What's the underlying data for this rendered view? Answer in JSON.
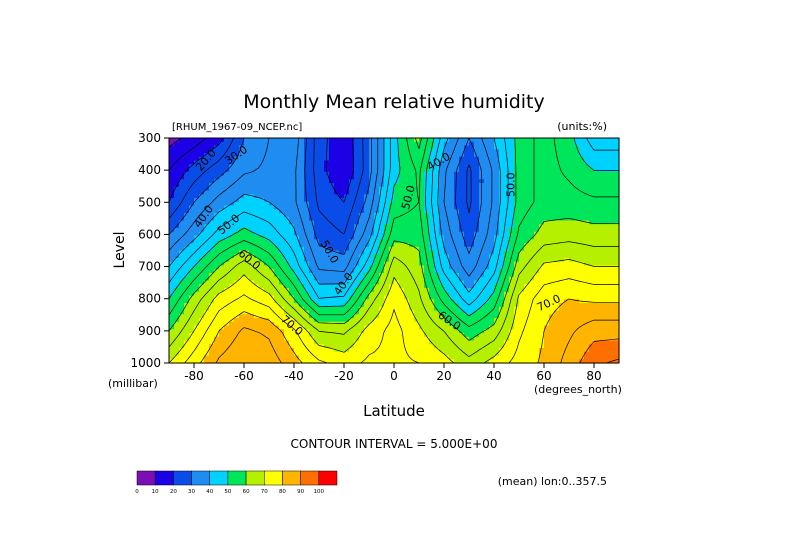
{
  "chart_data": {
    "type": "heatmap",
    "title": "Monthly Mean relative humidity",
    "dataset_label": "[RHUM_1967-09_NCEP.nc]",
    "units_label": "(units:%)",
    "xlabel": "Latitude",
    "x_units": "(degrees_north)",
    "ylabel": "Level",
    "y_units": "(millibar)",
    "xlim": [
      -90,
      90
    ],
    "ylim": [
      1000,
      300
    ],
    "x_ticks": [
      -80,
      -60,
      -40,
      -20,
      0,
      20,
      40,
      60,
      80
    ],
    "x_tick_labels": [
      "-80",
      "-60",
      "-40",
      "-20",
      "0",
      "20",
      "40",
      "60",
      "80"
    ],
    "y_ticks": [
      300,
      400,
      500,
      600,
      700,
      800,
      900,
      1000
    ],
    "y_tick_labels": [
      "300",
      "400",
      "500",
      "600",
      "700",
      "800",
      "900",
      "1000"
    ],
    "lats": [
      -90,
      -80,
      -70,
      -60,
      -50,
      -40,
      -30,
      -20,
      -10,
      0,
      10,
      20,
      30,
      40,
      50,
      60,
      70,
      80,
      90
    ],
    "levels": [
      300,
      400,
      500,
      600,
      700,
      800,
      900,
      1000
    ],
    "values": [
      [
        8,
        12,
        18,
        30,
        35,
        38,
        22,
        16,
        28,
        48,
        62,
        42,
        30,
        40,
        52,
        57,
        52,
        42,
        42
      ],
      [
        15,
        22,
        28,
        34,
        36,
        36,
        22,
        15,
        28,
        48,
        56,
        36,
        24,
        36,
        52,
        57,
        54,
        50,
        50
      ],
      [
        20,
        30,
        37,
        42,
        40,
        36,
        24,
        20,
        32,
        52,
        55,
        35,
        24,
        36,
        52,
        57,
        57,
        56,
        56
      ],
      [
        30,
        38,
        47,
        52,
        48,
        41,
        28,
        25,
        38,
        58,
        58,
        38,
        27,
        38,
        56,
        62,
        63,
        62,
        62
      ],
      [
        40,
        50,
        60,
        68,
        60,
        48,
        34,
        33,
        48,
        68,
        62,
        43,
        32,
        43,
        63,
        71,
        72,
        70,
        70
      ],
      [
        50,
        62,
        72,
        76,
        72,
        60,
        45,
        46,
        62,
        74,
        66,
        53,
        42,
        52,
        71,
        78,
        80,
        79,
        79
      ],
      [
        60,
        70,
        80,
        86,
        84,
        76,
        65,
        64,
        72,
        77,
        71,
        65,
        57,
        62,
        74,
        80,
        84,
        88,
        88
      ],
      [
        70,
        78,
        86,
        90,
        88,
        82,
        76,
        73,
        76,
        76,
        75,
        72,
        67,
        72,
        77,
        81,
        87,
        94,
        96
      ]
    ],
    "contour_labels": [
      {
        "text": "20.0",
        "lat": -75,
        "lev": 370,
        "angle": -50
      },
      {
        "text": "30.0",
        "lat": -63,
        "lev": 355,
        "angle": -35
      },
      {
        "text": "40.0",
        "lat": -76,
        "lev": 545,
        "angle": -55
      },
      {
        "text": "50.0",
        "lat": -66,
        "lev": 570,
        "angle": -40
      },
      {
        "text": "60.0",
        "lat": -58,
        "lev": 680,
        "angle": 40
      },
      {
        "text": "70.0",
        "lat": -41,
        "lev": 885,
        "angle": 40
      },
      {
        "text": "50.0",
        "lat": -26,
        "lev": 655,
        "angle": 60
      },
      {
        "text": "40.0",
        "lat": -20,
        "lev": 755,
        "angle": -55
      },
      {
        "text": "50.0",
        "lat": 6,
        "lev": 485,
        "angle": -75
      },
      {
        "text": "40.0",
        "lat": 18,
        "lev": 375,
        "angle": -30
      },
      {
        "text": "60.0",
        "lat": 22,
        "lev": 870,
        "angle": 35
      },
      {
        "text": "50.0",
        "lat": 47,
        "lev": 445,
        "angle": -90
      },
      {
        "text": "70.0",
        "lat": 62,
        "lev": 815,
        "angle": -25
      }
    ],
    "color_levels": [
      0,
      10,
      20,
      30,
      40,
      50,
      60,
      70,
      80,
      90,
      100
    ],
    "colorbar_tick_labels": [
      "0",
      "10",
      "20",
      "30",
      "40",
      "50",
      "60",
      "70",
      "80",
      "90",
      "100"
    ],
    "colors": [
      "#7b0fb4",
      "#1c00e6",
      "#0a4ce8",
      "#1e8cf0",
      "#00d2ff",
      "#00e65a",
      "#b4f000",
      "#ffff00",
      "#ffb400",
      "#ff6e00",
      "#ff0000"
    ],
    "contour_interval_text": "CONTOUR INTERVAL = 5.000E+00",
    "footer_text": "(mean) lon:0..357.5"
  }
}
